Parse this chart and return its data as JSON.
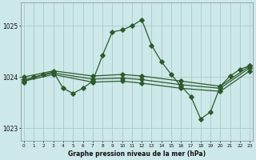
{
  "title": "Graphe pression niveau de la mer (hPa)",
  "bg_color": "#cce8e8",
  "grid_color": "#aacccc",
  "line_color": "#2d5a2d",
  "ylim": [
    1022.75,
    1025.45
  ],
  "yticks": [
    1023,
    1024,
    1025
  ],
  "ytick_labels": [
    "1023",
    "1024",
    "1025"
  ],
  "x_ticks": [
    0,
    1,
    2,
    3,
    4,
    5,
    6,
    7,
    8,
    9,
    10,
    11,
    12,
    13,
    14,
    15,
    16,
    17,
    18,
    19,
    20,
    21,
    22,
    23
  ],
  "main_y": [
    1023.9,
    1024.0,
    1024.05,
    1024.1,
    1023.78,
    1023.68,
    1023.78,
    1023.92,
    1024.42,
    1024.88,
    1024.92,
    1025.0,
    1025.12,
    1024.62,
    1024.3,
    1024.05,
    1023.82,
    1023.62,
    1023.18,
    1023.32,
    1023.82,
    1024.02,
    1024.15,
    1024.22
  ],
  "line2_x": [
    0,
    3,
    7,
    10,
    12,
    16,
    20,
    23
  ],
  "line2_y": [
    1024.0,
    1024.12,
    1024.02,
    1024.05,
    1024.02,
    1023.92,
    1023.82,
    1024.22
  ],
  "line3_x": [
    0,
    3,
    7,
    10,
    12,
    16,
    20,
    23
  ],
  "line3_y": [
    1023.95,
    1024.08,
    1023.96,
    1023.98,
    1023.95,
    1023.85,
    1023.78,
    1024.18
  ],
  "line4_x": [
    0,
    3,
    7,
    10,
    12,
    16,
    20,
    23
  ],
  "line4_y": [
    1023.92,
    1024.05,
    1023.9,
    1023.92,
    1023.88,
    1023.78,
    1023.72,
    1024.12
  ]
}
